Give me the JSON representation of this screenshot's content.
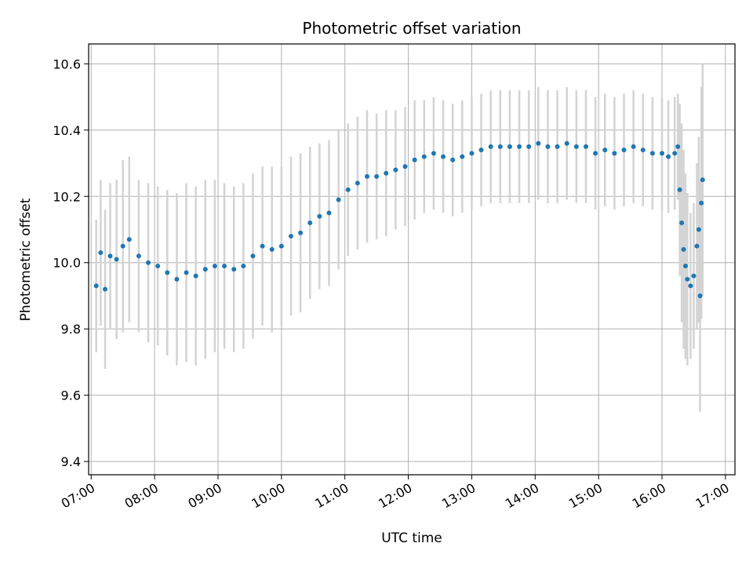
{
  "chart_data": {
    "type": "scatter",
    "title": "Photometric offset variation",
    "xlabel": "UTC time",
    "ylabel": "Photometric offset",
    "x_unit": "hours UTC",
    "xlim": [
      6.96,
      17.15
    ],
    "ylim": [
      9.36,
      10.66
    ],
    "x_ticks": [
      7,
      8,
      9,
      10,
      11,
      12,
      13,
      14,
      15,
      16,
      17
    ],
    "x_tick_labels": [
      "07:00",
      "08:00",
      "09:00",
      "10:00",
      "11:00",
      "12:00",
      "13:00",
      "14:00",
      "15:00",
      "16:00",
      "17:00"
    ],
    "y_ticks": [
      9.4,
      9.6,
      9.8,
      10.0,
      10.2,
      10.4,
      10.6
    ],
    "y_tick_labels": [
      "9.4",
      "9.6",
      "9.8",
      "10.0",
      "10.2",
      "10.4",
      "10.6"
    ],
    "grid": true,
    "colors": {
      "points": "#1f77b4",
      "errorbars": "#d3d3d3"
    },
    "series": [
      {
        "role": "points-with-errorbars",
        "points": [
          [
            7.08,
            9.93,
            0.2
          ],
          [
            7.15,
            10.03,
            0.22
          ],
          [
            7.22,
            9.92,
            0.24
          ],
          [
            7.3,
            10.02,
            0.22
          ],
          [
            7.4,
            10.01,
            0.24
          ],
          [
            7.5,
            10.05,
            0.26
          ],
          [
            7.6,
            10.07,
            0.25
          ],
          [
            7.75,
            10.02,
            0.23
          ],
          [
            7.9,
            10.0,
            0.24
          ],
          [
            8.05,
            9.99,
            0.24
          ],
          [
            8.2,
            9.97,
            0.25
          ],
          [
            8.35,
            9.95,
            0.26
          ],
          [
            8.5,
            9.97,
            0.27
          ],
          [
            8.65,
            9.96,
            0.27
          ],
          [
            8.8,
            9.98,
            0.27
          ],
          [
            8.95,
            9.99,
            0.26
          ],
          [
            9.1,
            9.99,
            0.25
          ],
          [
            9.25,
            9.98,
            0.25
          ],
          [
            9.4,
            9.99,
            0.25
          ],
          [
            9.55,
            10.02,
            0.25
          ],
          [
            9.7,
            10.05,
            0.24
          ],
          [
            9.85,
            10.04,
            0.25
          ],
          [
            10.0,
            10.05,
            0.24
          ],
          [
            10.15,
            10.08,
            0.24
          ],
          [
            10.3,
            10.09,
            0.24
          ],
          [
            10.45,
            10.12,
            0.23
          ],
          [
            10.6,
            10.14,
            0.22
          ],
          [
            10.75,
            10.15,
            0.22
          ],
          [
            10.9,
            10.19,
            0.21
          ],
          [
            11.05,
            10.22,
            0.2
          ],
          [
            11.2,
            10.24,
            0.2
          ],
          [
            11.35,
            10.26,
            0.2
          ],
          [
            11.5,
            10.26,
            0.19
          ],
          [
            11.65,
            10.27,
            0.19
          ],
          [
            11.8,
            10.28,
            0.18
          ],
          [
            11.95,
            10.29,
            0.18
          ],
          [
            12.1,
            10.31,
            0.18
          ],
          [
            12.25,
            10.32,
            0.17
          ],
          [
            12.4,
            10.33,
            0.17
          ],
          [
            12.55,
            10.32,
            0.17
          ],
          [
            12.7,
            10.31,
            0.17
          ],
          [
            12.85,
            10.32,
            0.17
          ],
          [
            13.0,
            10.33,
            0.17
          ],
          [
            13.15,
            10.34,
            0.17
          ],
          [
            13.3,
            10.35,
            0.17
          ],
          [
            13.45,
            10.35,
            0.17
          ],
          [
            13.6,
            10.35,
            0.17
          ],
          [
            13.75,
            10.35,
            0.17
          ],
          [
            13.9,
            10.35,
            0.17
          ],
          [
            14.05,
            10.36,
            0.17
          ],
          [
            14.2,
            10.35,
            0.17
          ],
          [
            14.35,
            10.35,
            0.17
          ],
          [
            14.5,
            10.36,
            0.17
          ],
          [
            14.65,
            10.35,
            0.17
          ],
          [
            14.8,
            10.35,
            0.17
          ],
          [
            14.95,
            10.33,
            0.17
          ],
          [
            15.1,
            10.34,
            0.17
          ],
          [
            15.25,
            10.33,
            0.17
          ],
          [
            15.4,
            10.34,
            0.17
          ],
          [
            15.55,
            10.35,
            0.17
          ],
          [
            15.7,
            10.34,
            0.17
          ],
          [
            15.85,
            10.33,
            0.17
          ],
          [
            16.0,
            10.33,
            0.17
          ],
          [
            16.1,
            10.32,
            0.17
          ],
          [
            16.2,
            10.33,
            0.17
          ],
          [
            16.25,
            10.35,
            0.16
          ],
          [
            16.28,
            10.22,
            0.26
          ],
          [
            16.31,
            10.12,
            0.3
          ],
          [
            16.34,
            10.04,
            0.3
          ],
          [
            16.37,
            9.99,
            0.28
          ],
          [
            16.4,
            9.95,
            0.26
          ],
          [
            16.45,
            9.93,
            0.22
          ],
          [
            16.5,
            9.96,
            0.22
          ],
          [
            16.55,
            10.05,
            0.25
          ],
          [
            16.58,
            10.1,
            0.28
          ],
          [
            16.6,
            9.9,
            0.35
          ],
          [
            16.62,
            10.18,
            0.35
          ],
          [
            16.64,
            10.25,
            0.35
          ]
        ]
      }
    ]
  }
}
